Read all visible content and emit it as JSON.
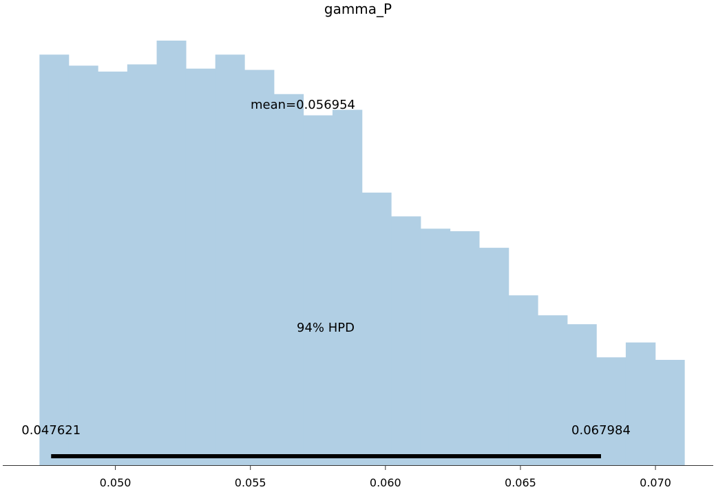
{
  "chart_data": {
    "type": "bar",
    "title": "gamma_P",
    "xlabel": "",
    "ylabel": "",
    "x_ticks": [
      "0.050",
      "0.055",
      "0.060",
      "0.065",
      "0.070"
    ],
    "x_tick_values": [
      0.05,
      0.055,
      0.06,
      0.065,
      0.07
    ],
    "xlim": [
      0.04583,
      0.07214
    ],
    "ylim": [
      0,
      1
    ],
    "bin_edges": [
      0.04719,
      0.04827,
      0.04935,
      0.05044,
      0.05153,
      0.05261,
      0.0537,
      0.05478,
      0.05587,
      0.05696,
      0.05804,
      0.05913,
      0.06021,
      0.0613,
      0.06239,
      0.06347,
      0.06456,
      0.06564,
      0.06673,
      0.06781,
      0.0689,
      0.06999,
      0.07107
    ],
    "values": [
      0.967,
      0.941,
      0.927,
      0.944,
      1.0,
      0.934,
      0.967,
      0.931,
      0.874,
      0.824,
      0.837,
      0.642,
      0.586,
      0.557,
      0.551,
      0.512,
      0.4,
      0.353,
      0.332,
      0.254,
      0.289,
      0.248
    ],
    "mean_label": "mean=0.056954",
    "hpd_label": "94% HPD",
    "hpd_low": 0.047621,
    "hpd_high": 0.067984,
    "hpd_low_label": "0.047621",
    "hpd_high_label": "0.067984",
    "bar_color": "#b1cfe4",
    "hpd_color": "#000000",
    "grid": false
  }
}
